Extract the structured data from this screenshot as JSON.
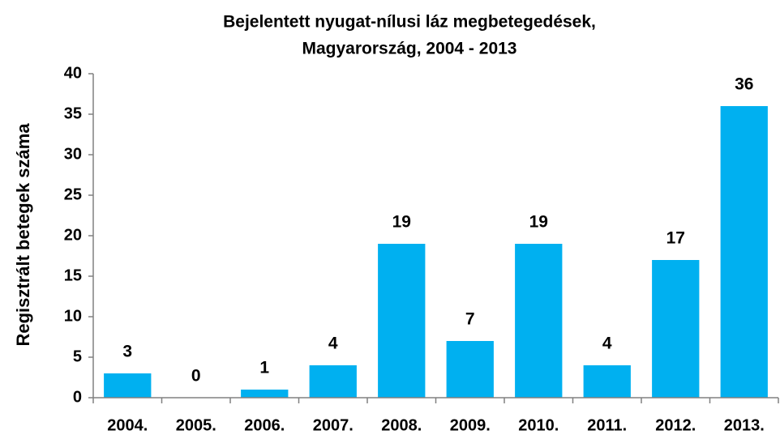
{
  "chart_data": {
    "type": "bar",
    "title": [
      "Bejelentett nyugat-nílusi láz megbetegedések,",
      "Magyarország, 2004 - 2013"
    ],
    "y_label": "Regisztrált betegek száma",
    "categories": [
      "2004.",
      "2005.",
      "2006.",
      "2007.",
      "2008.",
      "2009.",
      "2010.",
      "2011.",
      "2012.",
      "2013."
    ],
    "values": [
      3,
      0,
      1,
      4,
      19,
      7,
      19,
      4,
      17,
      36
    ],
    "color": "#00b0f0",
    "ylim": [
      0,
      40
    ],
    "yticks": [
      0,
      5,
      10,
      15,
      20,
      25,
      30,
      35,
      40
    ],
    "grid": false
  }
}
